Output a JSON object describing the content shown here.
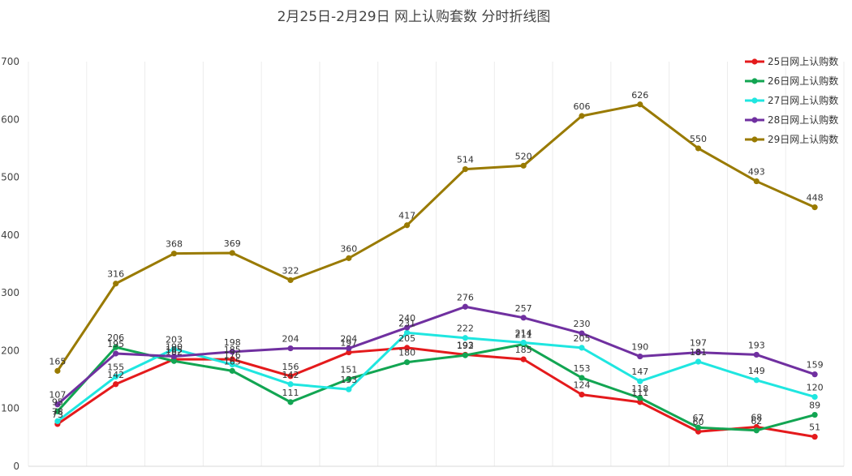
{
  "chart_data": {
    "type": "line",
    "title": "2月25日-2月29日 网上认购套数 分时折线图",
    "xlabel": "",
    "ylabel": "",
    "ylim": [
      0,
      700
    ],
    "yticks": [
      0,
      100,
      200,
      300,
      400,
      500,
      600,
      700
    ],
    "grid": "vertical",
    "legend_position": "top-right",
    "categories": [
      "",
      "",
      "",
      "",
      "",
      "",
      "",
      "",
      "",
      "",
      "",
      "",
      "",
      ""
    ],
    "series": [
      {
        "name": "25日网上认购数",
        "color": "#e41a1c",
        "values": [
          73,
          142,
          185,
          185,
          156,
          197,
          205,
          193,
          185,
          124,
          111,
          60,
          68,
          51
        ]
      },
      {
        "name": "26日网上认购数",
        "color": "#12a552",
        "values": [
          95,
          206,
          182,
          165,
          111,
          151,
          180,
          192,
          211,
          153,
          118,
          67,
          62,
          89
        ]
      },
      {
        "name": "27日网上认购数",
        "color": "#1fe6e0",
        "values": [
          78,
          155,
          203,
          176,
          142,
          133,
          231,
          222,
          214,
          205,
          147,
          181,
          149,
          120
        ]
      },
      {
        "name": "28日网上认购数",
        "color": "#7030a0",
        "values": [
          107,
          195,
          190,
          198,
          204,
          204,
          240,
          276,
          257,
          230,
          190,
          197,
          193,
          159
        ]
      },
      {
        "name": "29日网上认购数",
        "color": "#997a00",
        "values": [
          165,
          316,
          368,
          369,
          322,
          360,
          417,
          514,
          520,
          606,
          626,
          550,
          493,
          448
        ]
      }
    ]
  }
}
